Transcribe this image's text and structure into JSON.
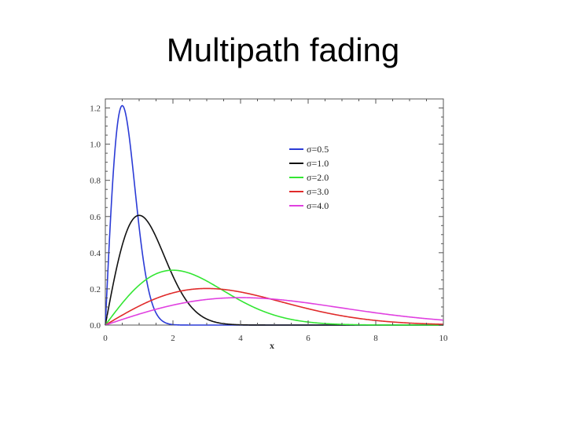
{
  "slide": {
    "title": "Multipath fading"
  },
  "chart_data": {
    "type": "line",
    "xlabel": "x",
    "ylabel": "",
    "xlim": [
      0,
      10
    ],
    "ylim": [
      0,
      1.25
    ],
    "x_ticks": [
      0,
      2,
      4,
      6,
      8,
      10
    ],
    "x_tick_labels": [
      "0",
      "2",
      "4",
      "6",
      "8",
      "10"
    ],
    "y_ticks": [
      0,
      0.2,
      0.4,
      0.6,
      0.8,
      1.0,
      1.2
    ],
    "y_tick_labels": [
      "0.0",
      "0.2",
      "0.4",
      "0.6",
      "0.8",
      "1.0",
      "1.2"
    ],
    "grid": false,
    "legend_position": "top-right",
    "function": "Rayleigh pdf f(x) = (x/σ²)·exp(-x²/(2σ²))",
    "series": [
      {
        "name": "σ=0.5",
        "sigma": 0.5,
        "color": "#2b3bd6"
      },
      {
        "name": "σ=1.0",
        "sigma": 1.0,
        "color": "#111111"
      },
      {
        "name": "σ=2.0",
        "sigma": 2.0,
        "color": "#33e633"
      },
      {
        "name": "σ=3.0",
        "sigma": 3.0,
        "color": "#e02a2a"
      },
      {
        "name": "σ=4.0",
        "sigma": 4.0,
        "color": "#e040e0"
      }
    ]
  }
}
